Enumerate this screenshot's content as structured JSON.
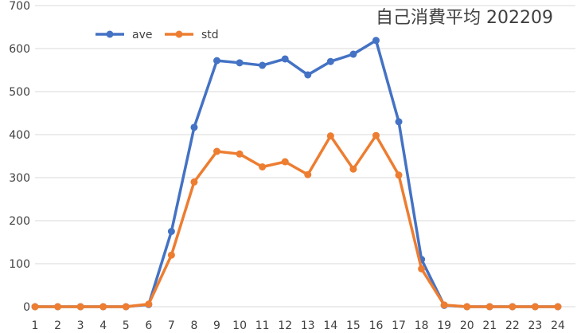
{
  "chart_data": {
    "type": "line",
    "title": "自己消費平均  202209",
    "xlabel": "",
    "ylabel": "",
    "x": [
      "1",
      "2",
      "3",
      "4",
      "5",
      "6",
      "7",
      "8",
      "9",
      "10",
      "11",
      "12",
      "13",
      "14",
      "15",
      "16",
      "17",
      "18",
      "19",
      "20",
      "21",
      "22",
      "23",
      "24"
    ],
    "ylim": [
      0,
      700
    ],
    "yticks": [
      0,
      100,
      200,
      300,
      400,
      500,
      600,
      700
    ],
    "grid": true,
    "legend": "top-left",
    "series": [
      {
        "name": "ave",
        "color": "#4472c4",
        "values": [
          0,
          0,
          0,
          0,
          0,
          5,
          175,
          417,
          572,
          567,
          561,
          576,
          539,
          570,
          587,
          619,
          430,
          110,
          3,
          0,
          0,
          0,
          0,
          0
        ]
      },
      {
        "name": "std",
        "color": "#ed7d31",
        "values": [
          0,
          0,
          0,
          0,
          0,
          6,
          120,
          290,
          361,
          355,
          325,
          337,
          307,
          397,
          320,
          398,
          306,
          88,
          4,
          0,
          0,
          0,
          0,
          0
        ]
      }
    ]
  }
}
